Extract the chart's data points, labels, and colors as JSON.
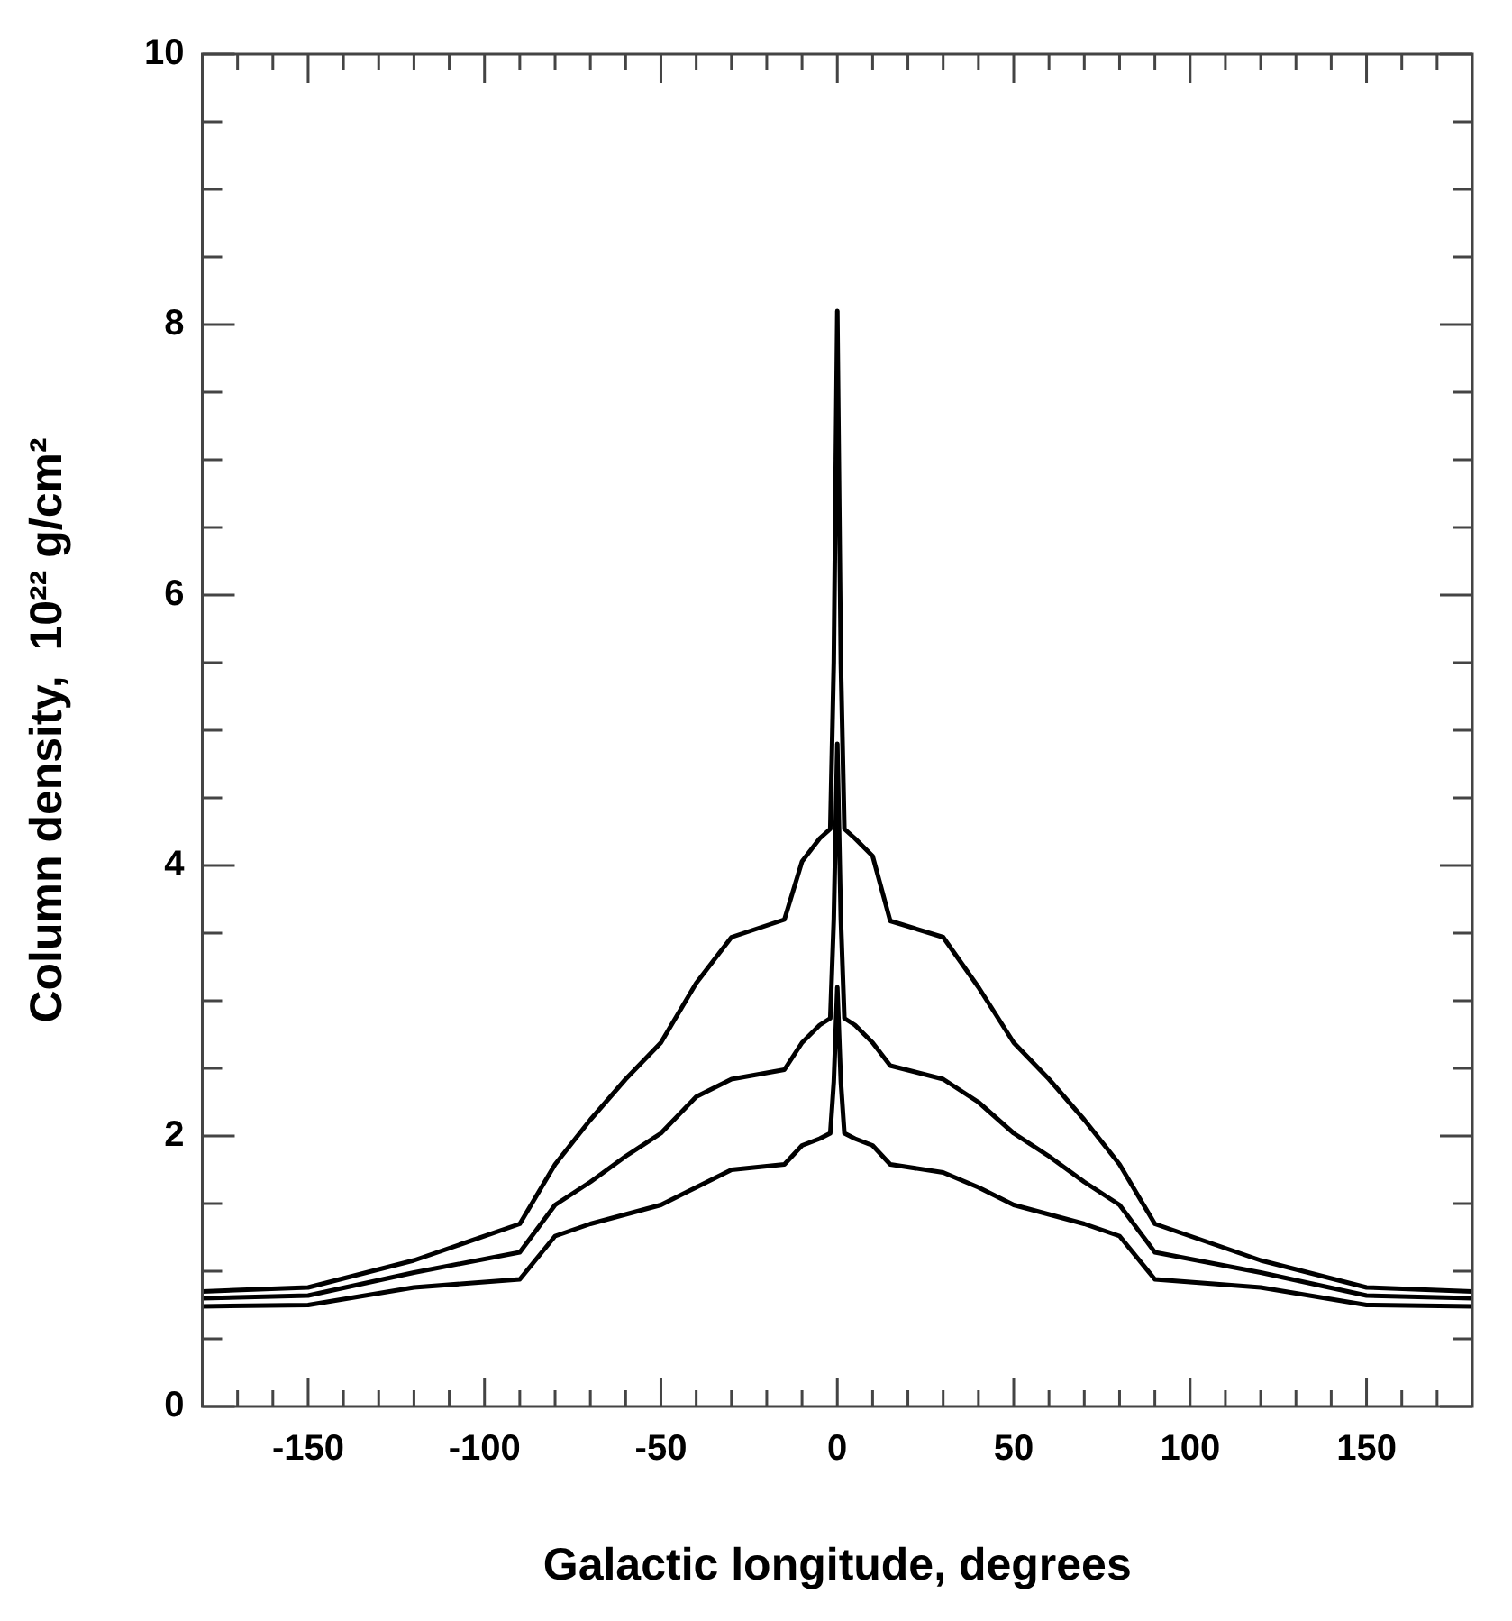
{
  "chart_data": {
    "type": "line",
    "xlabel": "Galactic longitude, degrees",
    "ylabel": "Column density,  10²² g/cm²",
    "x": [
      -180,
      -150,
      -120,
      -90,
      -80,
      -70,
      -60,
      -50,
      -40,
      -30,
      -15,
      -10,
      -5,
      -2,
      -1,
      0,
      1,
      2,
      5,
      10,
      15,
      30,
      40,
      50,
      60,
      70,
      80,
      90,
      120,
      150,
      180
    ],
    "series": [
      {
        "color": "#000000",
        "values": [
          0.85,
          0.88,
          1.08,
          1.35,
          1.79,
          2.12,
          2.42,
          2.69,
          3.13,
          3.47,
          3.6,
          4.03,
          4.2,
          4.27,
          5.5,
          8.1,
          5.5,
          4.27,
          4.2,
          4.07,
          3.59,
          3.47,
          3.1,
          2.69,
          2.42,
          2.12,
          1.79,
          1.35,
          1.08,
          0.88,
          0.85
        ]
      },
      {
        "color": "#000000",
        "values": [
          0.8,
          0.82,
          0.99,
          1.14,
          1.49,
          1.66,
          1.85,
          2.02,
          2.29,
          2.42,
          2.49,
          2.69,
          2.82,
          2.87,
          3.6,
          4.9,
          3.6,
          2.87,
          2.82,
          2.69,
          2.52,
          2.42,
          2.25,
          2.02,
          1.85,
          1.66,
          1.49,
          1.14,
          0.99,
          0.82,
          0.8
        ]
      },
      {
        "color": "#000000",
        "values": [
          0.74,
          0.75,
          0.88,
          0.94,
          1.26,
          1.35,
          1.42,
          1.49,
          1.62,
          1.75,
          1.79,
          1.93,
          1.98,
          2.02,
          2.4,
          3.1,
          2.4,
          2.02,
          1.98,
          1.93,
          1.79,
          1.73,
          1.62,
          1.49,
          1.42,
          1.35,
          1.26,
          0.94,
          0.88,
          0.75,
          0.74
        ]
      }
    ],
    "xlim": [
      -180,
      180
    ],
    "xticks": [
      {
        "value": -170,
        "label": null
      },
      {
        "value": -160,
        "label": null
      },
      -150,
      {
        "value": -140,
        "label": null
      },
      {
        "value": -130,
        "label": null
      },
      {
        "value": -120,
        "label": null
      },
      {
        "value": -110,
        "label": null
      },
      -100,
      {
        "value": -90,
        "label": null
      },
      {
        "value": -80,
        "label": null
      },
      {
        "value": -70,
        "label": null
      },
      {
        "value": -60,
        "label": null
      },
      -50,
      {
        "value": -40,
        "label": null
      },
      {
        "value": -30,
        "label": null
      },
      {
        "value": -20,
        "label": null
      },
      {
        "value": -10,
        "label": null
      },
      0,
      {
        "value": 10,
        "label": null
      },
      {
        "value": 20,
        "label": null
      },
      {
        "value": 30,
        "label": null
      },
      {
        "value": 40,
        "label": null
      },
      50,
      {
        "value": 60,
        "label": null
      },
      {
        "value": 70,
        "label": null
      },
      {
        "value": 80,
        "label": null
      },
      {
        "value": 90,
        "label": null
      },
      100,
      {
        "value": 110,
        "label": null
      },
      {
        "value": 120,
        "label": null
      },
      {
        "value": 130,
        "label": null
      },
      {
        "value": 140,
        "label": null
      },
      150,
      {
        "value": 160,
        "label": null
      },
      {
        "value": 170,
        "label": null
      }
    ],
    "ylim": [
      0,
      10
    ],
    "yticks": [
      0,
      {
        "value": 0.5,
        "label": null
      },
      {
        "value": 1,
        "label": null
      },
      {
        "value": 1.5,
        "label": null
      },
      2,
      {
        "value": 2.5,
        "label": null
      },
      {
        "value": 3,
        "label": null
      },
      {
        "value": 3.5,
        "label": null
      },
      4,
      {
        "value": 4.5,
        "label": null
      },
      {
        "value": 5,
        "label": null
      },
      {
        "value": 5.5,
        "label": null
      },
      6,
      {
        "value": 6.5,
        "label": null
      },
      {
        "value": 7,
        "label": null
      },
      {
        "value": 7.5,
        "label": null
      },
      8,
      {
        "value": 8.5,
        "label": null
      },
      {
        "value": 9,
        "label": null
      },
      {
        "value": 9.5,
        "label": null
      },
      10
    ],
    "grid": false,
    "legend": false,
    "marker": "none",
    "line_style": "solid"
  }
}
